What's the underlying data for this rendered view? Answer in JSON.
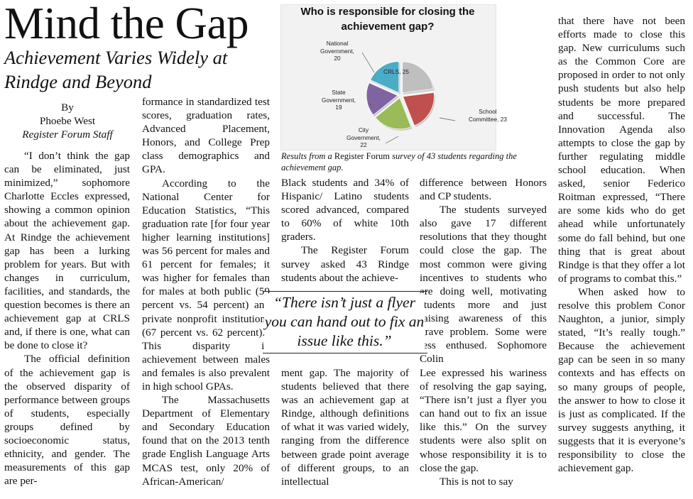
{
  "article": {
    "headline": "Mind the Gap",
    "subheadline": "Achievement Varies Widely at Rindge and Beyond",
    "byline": {
      "by": "By",
      "author": "Phoebe West",
      "role": "Register Forum Staff"
    },
    "col1": [
      "“I don’t think the gap can be eliminated, just minimized,” sophomore Charlotte Eccles expressed, showing a common opinion about the achievement gap. At Rindge the achievement gap has been a lurking problem for years. But with changes in curriculum, facilities, and standards, the question becomes is there an achievement gap at CRLS and, if there is one, what can be done to close it?",
      "The official definition of the achievement gap is the observed disparity of performance between groups of students, especially groups defined by socioeconomic status, ethnicity, and gender. The measurements of this gap are per-"
    ],
    "col2": [
      "formance in standardized test scores, graduation rates, Advanced Placement, Honors, and College Prep class demographics and GPA.",
      "According to the National Center for Education Statistics, “This graduation rate [for four year higher learning institutions] was 56 percent for males and 61 percent for females; it was higher for females than for males at both public (59 percent vs. 54 percent) and private nonprofit institutions (67 percent vs. 62 percent).” This disparity in achievement between males and females is also prevalent in high school GPAs.",
      "The Massachusetts Department of Elementary and Secondary Education found that on the 2013 tenth grade English Language Arts MCAS test, only 20% of African-American/"
    ],
    "col3a": [
      "Black students and 34% of Hispanic/ Latino students scored advanced, compared to 60% of white 10th graders.",
      "The Register Forum survey asked 43 Rindge students about the achieve-"
    ],
    "col3b": [
      "ment gap. The majority of students believed that there was an achievement gap at Rindge, although definitions of what it was varied widely, ranging from the difference between grade point average of different groups, to an intellectual"
    ],
    "col4a": [
      "difference between Honors and CP students.",
      "The students surveyed also gave 17 different resolutions that they thought could close the gap. The most common were giving incentives to students who are doing well, motivating students more and just raising awareness of this grave problem. Some were less enthused. Sophomore Colin"
    ],
    "col4b": [
      "Lee expressed his wariness of resolving the gap saying, “There isn’t just a flyer you can hand out to fix an issue like this.” On the survey students were also split on whose responsibility it is to close the gap.",
      "This is not to say"
    ],
    "col5": [
      "that there have not been efforts made to close this gap. New curriculums such as the Common Core are proposed in order to not only push students but also help students be more prepared and successful. The Innovation Agenda also attempts to close the gap by further regulating middle school education. When asked, senior Federico Roitman expressed, “There are some kids who do get ahead while unfortunately some do fall behind, but one thing that is great about Rindge is that they offer a lot of programs to combat this.”",
      "When asked how to resolve this problem Conor Naughton, a junior, simply stated, “It’s really tough.” Because the achievement gap can be seen in so many contexts and has effects on so many groups of people, the answer to how to close it is just as complicated. If the survey suggests anything, it suggests that it is everyone’s responsibility to close the achievement gap."
    ],
    "pull_quote": "“There isn’t just a flyer you can hand out to fix an issue like this.”"
  },
  "figure": {
    "caption_pre": "Results from a ",
    "caption_pub": "Register Forum",
    "caption_post": " survey of 43 students regarding the achievement gap."
  },
  "chart_data": {
    "type": "pie",
    "title": "Who is responsible for closing the achievement gap?",
    "categories": [
      "CRLS",
      "School Committee",
      "City Government",
      "State Government",
      "National Government"
    ],
    "values": [
      25,
      23,
      22,
      19,
      20
    ],
    "labels": {
      "crls": "CRLS, 25",
      "school_committee": [
        "School",
        "Committee, 23"
      ],
      "city_government": [
        "City",
        "Government,",
        "22"
      ],
      "state_government": [
        "State",
        "Government,",
        "19"
      ],
      "national_government": [
        "National",
        "Government,",
        "20"
      ]
    },
    "colors": [
      "#bfbfbf",
      "#c0504d",
      "#9bbb59",
      "#8064a2",
      "#4bacc6"
    ]
  }
}
